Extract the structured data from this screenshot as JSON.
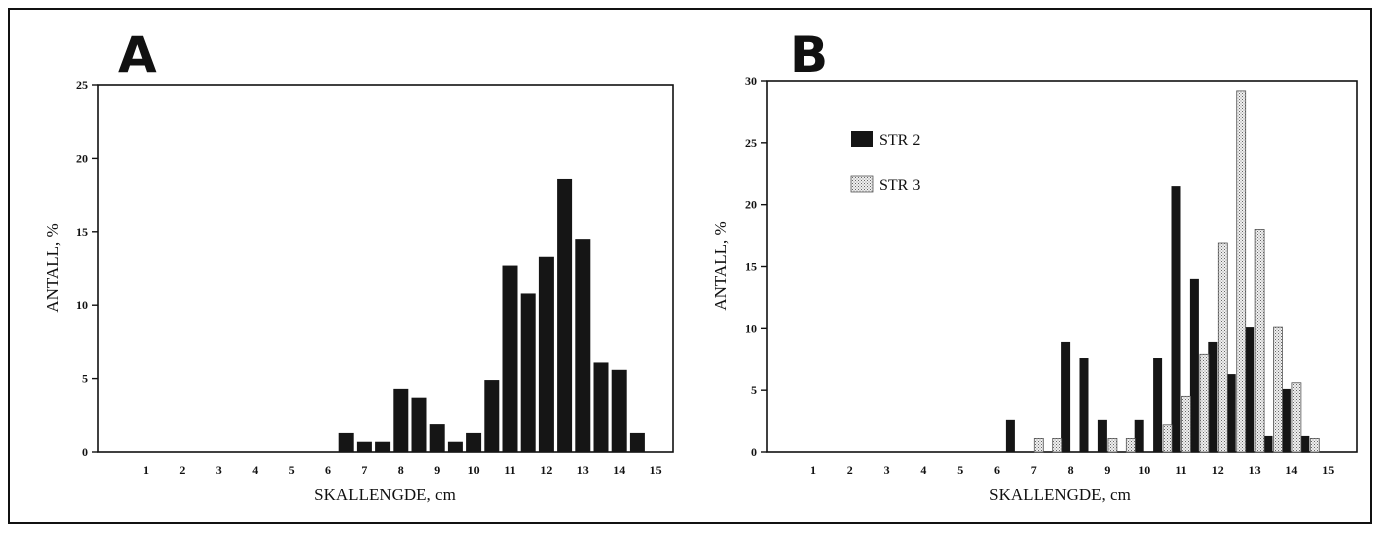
{
  "chart_data": [
    {
      "panel": "A",
      "type": "bar",
      "xlabel": "SKALLENGDE, cm",
      "ylabel": "ANTALL, %",
      "ylim": [
        0,
        25
      ],
      "yticks": [
        0,
        5,
        10,
        15,
        20,
        25
      ],
      "xticks": [
        "1",
        "2",
        "3",
        "4",
        "5",
        "6",
        "7",
        "8",
        "9",
        "10",
        "11",
        "12",
        "13",
        "14",
        "15"
      ],
      "grid": false,
      "series": [
        {
          "color": "#151515",
          "points": [
            {
              "x": 6.5,
              "y": 1.3
            },
            {
              "x": 7,
              "y": 0.7
            },
            {
              "x": 7.5,
              "y": 0.7
            },
            {
              "x": 8,
              "y": 4.3
            },
            {
              "x": 8.5,
              "y": 3.7
            },
            {
              "x": 9,
              "y": 1.9
            },
            {
              "x": 9.5,
              "y": 0.7
            },
            {
              "x": 10,
              "y": 1.3
            },
            {
              "x": 10.5,
              "y": 4.9
            },
            {
              "x": 11,
              "y": 12.7
            },
            {
              "x": 11.5,
              "y": 10.8
            },
            {
              "x": 12,
              "y": 13.3
            },
            {
              "x": 12.5,
              "y": 18.6
            },
            {
              "x": 13,
              "y": 14.5
            },
            {
              "x": 13.5,
              "y": 6.1
            },
            {
              "x": 14,
              "y": 5.6
            },
            {
              "x": 14.5,
              "y": 1.3
            }
          ]
        }
      ]
    },
    {
      "panel": "B",
      "type": "bar",
      "xlabel": "SKALLENGDE, cm",
      "ylabel": "ANTALL, %",
      "ylim": [
        0,
        30
      ],
      "yticks": [
        0,
        5,
        10,
        15,
        20,
        25,
        30
      ],
      "xticks": [
        "1",
        "2",
        "3",
        "4",
        "5",
        "6",
        "7",
        "8",
        "9",
        "10",
        "11",
        "12",
        "13",
        "14",
        "15"
      ],
      "grid": false,
      "legend_position": "top-left",
      "series": [
        {
          "name": "STR 2",
          "color": "#151515",
          "points": [
            {
              "x": 6.5,
              "y": 2.6
            },
            {
              "x": 8,
              "y": 8.9
            },
            {
              "x": 8.5,
              "y": 7.6
            },
            {
              "x": 9,
              "y": 2.6
            },
            {
              "x": 10,
              "y": 2.6
            },
            {
              "x": 10.5,
              "y": 7.6
            },
            {
              "x": 11,
              "y": 21.5
            },
            {
              "x": 11.5,
              "y": 14.0
            },
            {
              "x": 12,
              "y": 8.9
            },
            {
              "x": 12.5,
              "y": 6.3
            },
            {
              "x": 13,
              "y": 10.1
            },
            {
              "x": 13.5,
              "y": 1.3
            },
            {
              "x": 14,
              "y": 5.1
            },
            {
              "x": 14.5,
              "y": 1.3
            }
          ]
        },
        {
          "name": "STR 3",
          "color": "#d4d4d4",
          "points": [
            {
              "x": 7,
              "y": 1.1
            },
            {
              "x": 7.5,
              "y": 1.1
            },
            {
              "x": 9,
              "y": 1.1
            },
            {
              "x": 9.5,
              "y": 1.1
            },
            {
              "x": 10.5,
              "y": 2.2
            },
            {
              "x": 11,
              "y": 4.5
            },
            {
              "x": 11.5,
              "y": 7.9
            },
            {
              "x": 12,
              "y": 16.9
            },
            {
              "x": 12.5,
              "y": 29.2
            },
            {
              "x": 13,
              "y": 18.0
            },
            {
              "x": 13.5,
              "y": 10.1
            },
            {
              "x": 14,
              "y": 5.6
            },
            {
              "x": 14.5,
              "y": 1.1
            }
          ]
        }
      ]
    }
  ]
}
